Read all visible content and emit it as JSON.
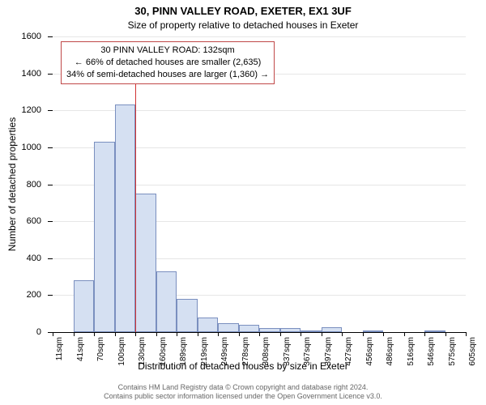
{
  "title_main": "30, PINN VALLEY ROAD, EXETER, EX1 3UF",
  "title_sub": "Size of property relative to detached houses in Exeter",
  "y_axis_label": "Number of detached properties",
  "x_axis_label": "Distribution of detached houses by size in Exeter",
  "footer_line1": "Contains HM Land Registry data © Crown copyright and database right 2024.",
  "footer_line2": "Contains public sector information licensed under the Open Government Licence v3.0.",
  "chart": {
    "type": "histogram",
    "y_max": 1600,
    "y_ticks": [
      0,
      200,
      400,
      600,
      800,
      1000,
      1200,
      1400,
      1600
    ],
    "x_ticks": [
      "11sqm",
      "41sqm",
      "70sqm",
      "100sqm",
      "130sqm",
      "160sqm",
      "189sqm",
      "219sqm",
      "249sqm",
      "278sqm",
      "308sqm",
      "337sqm",
      "367sqm",
      "397sqm",
      "427sqm",
      "456sqm",
      "486sqm",
      "516sqm",
      "546sqm",
      "575sqm",
      "605sqm"
    ],
    "bar_values": [
      0,
      280,
      1030,
      1230,
      750,
      330,
      180,
      80,
      50,
      40,
      20,
      20,
      5,
      25,
      0,
      5,
      0,
      0,
      5,
      0
    ],
    "bar_fill": "#d5e0f2",
    "bar_stroke": "#7a8fbf",
    "grid_color": "#e6e6e6",
    "marker": {
      "enabled": true,
      "at_slot_index": 4,
      "color": "#d13434"
    },
    "annotation": {
      "line1": "30 PINN VALLEY ROAD: 132sqm",
      "line2": "← 66% of detached houses are smaller (2,635)",
      "line3": "34% of semi-detached houses are larger (1,360) →",
      "border_color": "#c04848"
    }
  }
}
